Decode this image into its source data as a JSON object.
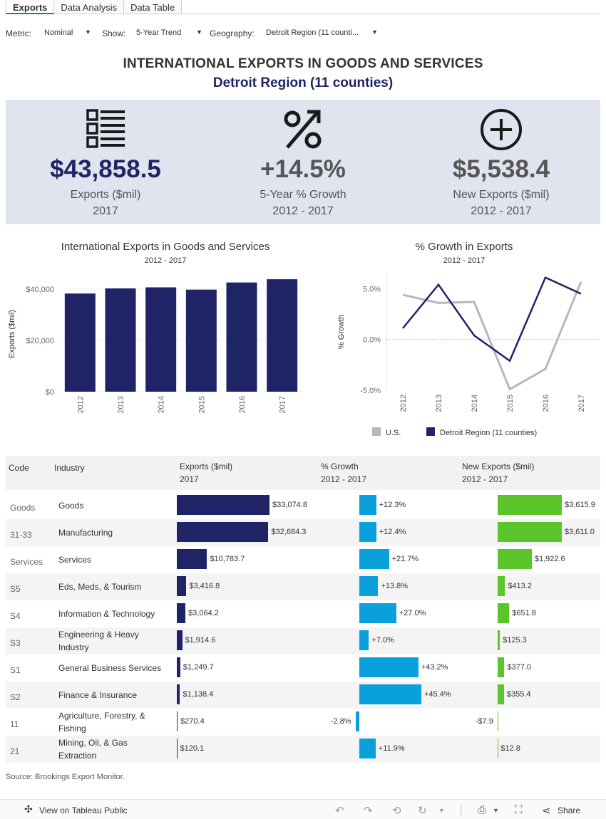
{
  "tabs": [
    "Exports",
    "Data Analysis",
    "Data Table"
  ],
  "filters": {
    "metric_label": "Metric:",
    "metric_value": "Nominal",
    "show_label": "Show:",
    "show_value": "5-Year Trend",
    "geo_label": "Geography:",
    "geo_value": "Detroit Region (11 counti..."
  },
  "header": {
    "title": "INTERNATIONAL EXPORTS IN GOODS AND SERVICES",
    "subtitle": "Detroit Region (11 counties)"
  },
  "kpis": [
    {
      "value": "$43,858.5",
      "label": "Exports ($mil)",
      "period": "2017",
      "color": "#1f2467",
      "icon": "list-icon"
    },
    {
      "value": "+14.5%",
      "label": "5-Year % Growth",
      "period": "2012 - 2017",
      "color": "#555555",
      "icon": "percent-icon"
    },
    {
      "value": "$5,538.4",
      "label": "New Exports ($mil)",
      "period": "2012 - 2017",
      "color": "#555555",
      "icon": "plus-circle-icon"
    }
  ],
  "chart_data": [
    {
      "type": "bar",
      "title": "International Exports in Goods and Services",
      "subtitle": "2012 - 2017",
      "ylabel": "Exports ($mil)",
      "categories": [
        "2012",
        "2013",
        "2014",
        "2015",
        "2016",
        "2017"
      ],
      "values": [
        38300,
        40300,
        40700,
        39800,
        42600,
        43858.5
      ],
      "yticks": [
        "$0",
        "$20,000",
        "$40,000"
      ],
      "ylim": [
        0,
        45000
      ],
      "color": "#1f2467"
    },
    {
      "type": "line",
      "title": "% Growth in Exports",
      "subtitle": "2012 - 2017",
      "ylabel": "% Growth",
      "categories": [
        "2012",
        "2013",
        "2014",
        "2015",
        "2016",
        "2017"
      ],
      "yticks": [
        "-5.0%",
        "0.0%",
        "5.0%"
      ],
      "ylim": [
        -5.0,
        6.5
      ],
      "series": [
        {
          "name": "U.S.",
          "values": [
            4.4,
            3.6,
            3.7,
            -4.9,
            -2.9,
            5.7
          ],
          "color": "#b8b8b8"
        },
        {
          "name": "Detroit Region (11 counties)",
          "values": [
            1.1,
            5.4,
            0.4,
            -2.1,
            6.1,
            4.5
          ],
          "color": "#1f2467"
        }
      ]
    }
  ],
  "table": {
    "headers": {
      "code": "Code",
      "industry": "Industry",
      "exports": "Exports  ($mil)",
      "exports_period": "2017",
      "growth": "% Growth",
      "growth_period": "2012 - 2017",
      "new": "New Exports ($mil)",
      "new_period": "2012 - 2017"
    },
    "rows": [
      {
        "code": "Goods",
        "industry": "Goods",
        "exports": 33074.8,
        "exports_label": "$33,074.8",
        "growth": 12.3,
        "growth_label": "+12.3%",
        "new": 3615.9,
        "new_label": "$3,615.9"
      },
      {
        "code": "31-33",
        "industry": "Manufacturing",
        "exports": 32684.3,
        "exports_label": "$32,684.3",
        "growth": 12.4,
        "growth_label": "+12.4%",
        "new": 3611.0,
        "new_label": "$3,611.0"
      },
      {
        "code": "Services",
        "industry": "Services",
        "exports": 10783.7,
        "exports_label": "$10,783.7",
        "growth": 21.7,
        "growth_label": "+21.7%",
        "new": 1922.6,
        "new_label": "$1,922.6"
      },
      {
        "code": "S5",
        "industry": "Eds, Meds, & Tourism",
        "exports": 3416.8,
        "exports_label": "$3,416.8",
        "growth": 13.8,
        "growth_label": "+13.8%",
        "new": 413.2,
        "new_label": "$413.2"
      },
      {
        "code": "S4",
        "industry": "Information & Technology",
        "exports": 3064.2,
        "exports_label": "$3,064.2",
        "growth": 27.0,
        "growth_label": "+27.0%",
        "new": 651.8,
        "new_label": "$651.8"
      },
      {
        "code": "S3",
        "industry": "Engineering & Heavy Industry",
        "exports": 1914.6,
        "exports_label": "$1,914.6",
        "growth": 7.0,
        "growth_label": "+7.0%",
        "new": 125.3,
        "new_label": "$125.3"
      },
      {
        "code": "S1",
        "industry": "General Business Services",
        "exports": 1249.7,
        "exports_label": "$1,249.7",
        "growth": 43.2,
        "growth_label": "+43.2%",
        "new": 377.0,
        "new_label": "$377.0"
      },
      {
        "code": "S2",
        "industry": "Finance & Insurance",
        "exports": 1138.4,
        "exports_label": "$1,138.4",
        "growth": 45.4,
        "growth_label": "+45.4%",
        "new": 355.4,
        "new_label": "$355.4"
      },
      {
        "code": "11",
        "industry": "Agriculture, Forestry, & Fishing",
        "exports": 270.4,
        "exports_label": "$270.4",
        "growth": -2.8,
        "growth_label": "-2.8%",
        "new": -7.9,
        "new_label": "-$7.9"
      },
      {
        "code": "21",
        "industry": "Mining, Oil, & Gas Extraction",
        "exports": 120.1,
        "exports_label": "$120.1",
        "growth": 11.9,
        "growth_label": "+11.9%",
        "new": 12.8,
        "new_label": "$12.8"
      }
    ],
    "colors": {
      "exports": "#1f2467",
      "growth": "#0aa0dc",
      "new": "#5cc42b"
    }
  },
  "source": "Source: Brookings Export Monitor.",
  "footer": {
    "view_label": "View on Tableau Public",
    "share_label": "Share"
  }
}
